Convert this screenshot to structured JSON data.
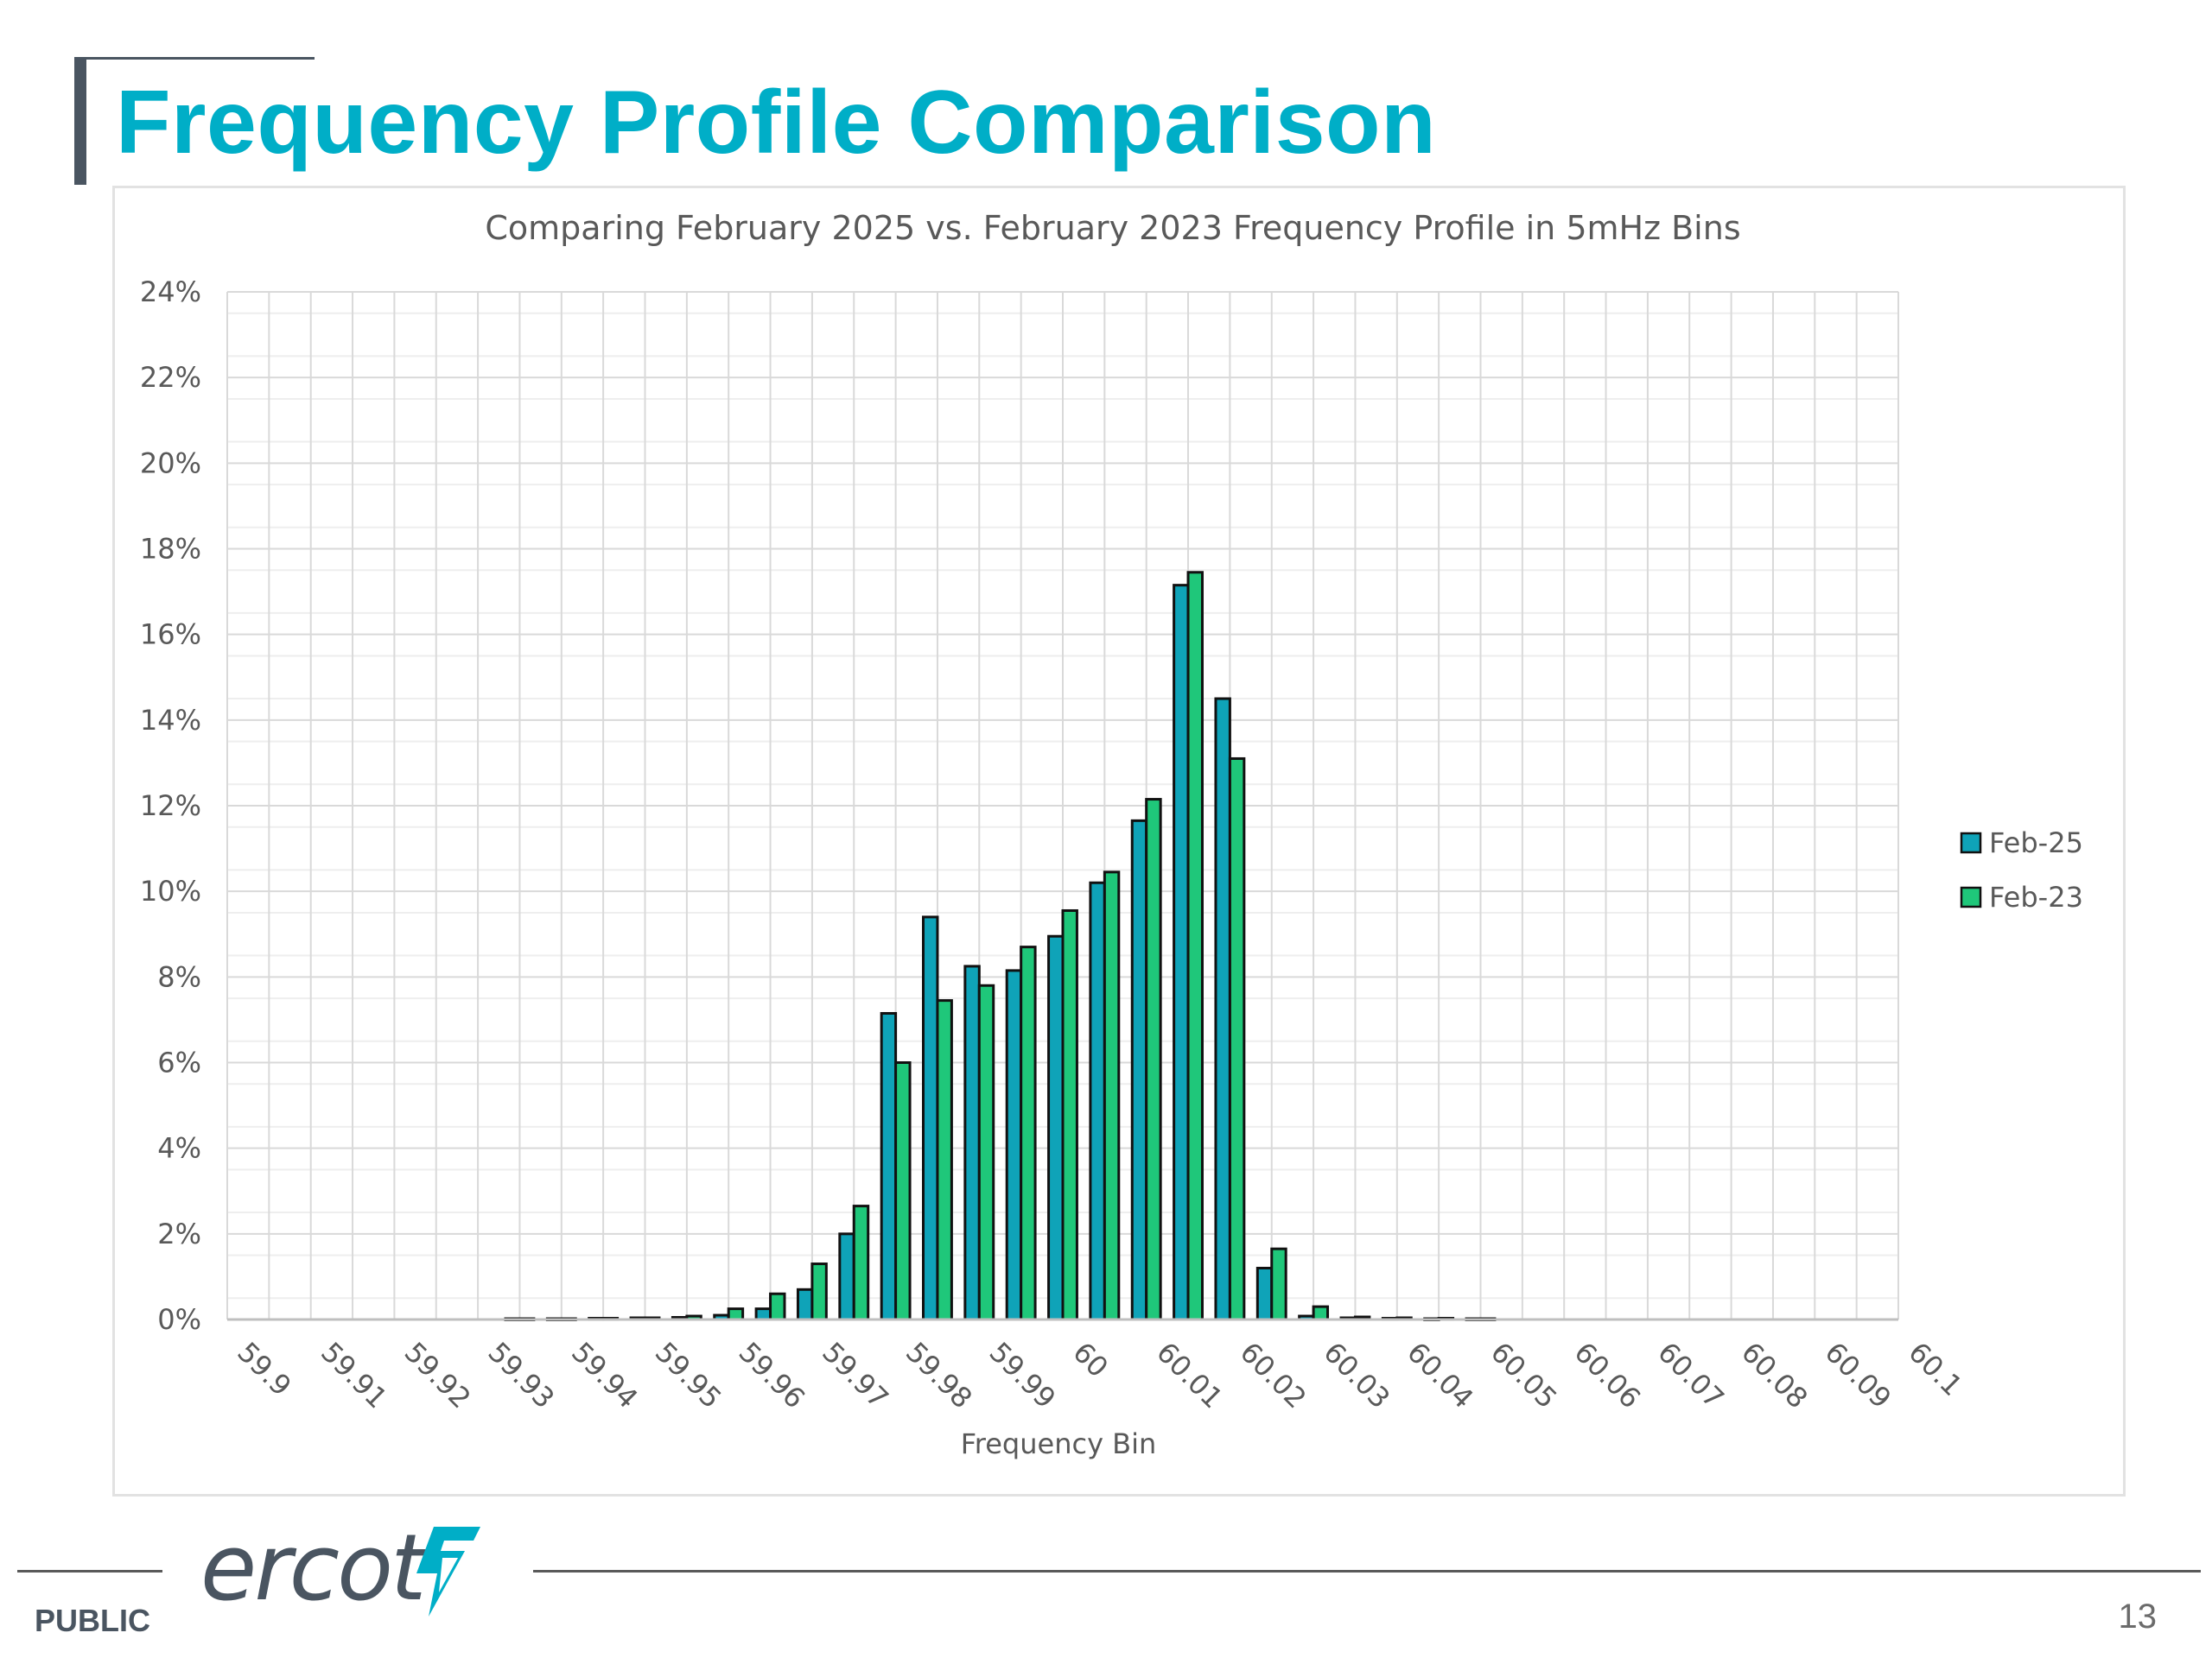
{
  "slide": {
    "title": "Frequency Profile Comparison",
    "footer_label": "PUBLIC",
    "page_number": "13",
    "logo_text": "ercot"
  },
  "colors": {
    "title": "#00AEC7",
    "feb25": "#0FA3B8",
    "feb23": "#1FC77A",
    "bar_outline": "#111111",
    "grid": "#D9D9D9",
    "axis_text": "#595959"
  },
  "icons": {
    "logo_mark": "ercot-lightning-icon"
  },
  "chart_data": {
    "type": "bar",
    "title": "Comparing February 2025 vs. February 2023 Frequency Profile in 5mHz Bins",
    "xlabel": "Frequency Bin",
    "ylabel": "",
    "ylim": [
      0,
      0.24
    ],
    "yticks": [
      "0%",
      "2%",
      "4%",
      "6%",
      "8%",
      "10%",
      "12%",
      "14%",
      "16%",
      "18%",
      "20%",
      "22%",
      "24%"
    ],
    "x_tick_labels": [
      "59.9",
      "59.91",
      "59.92",
      "59.93",
      "59.94",
      "59.95",
      "59.96",
      "59.97",
      "59.98",
      "59.99",
      "60",
      "60.01",
      "60.02",
      "60.03",
      "60.04",
      "60.05",
      "60.06",
      "60.07",
      "60.08",
      "60.09",
      "60.1"
    ],
    "grid": true,
    "legend_position": "right",
    "categories": [
      "59.900",
      "59.905",
      "59.910",
      "59.915",
      "59.920",
      "59.925",
      "59.930",
      "59.935",
      "59.940",
      "59.945",
      "59.950",
      "59.955",
      "59.960",
      "59.965",
      "59.970",
      "59.975",
      "59.980",
      "59.985",
      "59.990",
      "59.995",
      "60.000",
      "60.005",
      "60.010",
      "60.015",
      "60.020",
      "60.025",
      "60.030",
      "60.035",
      "60.040",
      "60.045",
      "60.050",
      "60.055",
      "60.060",
      "60.065",
      "60.070",
      "60.075",
      "60.080",
      "60.085",
      "60.090",
      "60.095",
      "60.100"
    ],
    "series": [
      {
        "name": "Feb-25",
        "values": [
          0,
          0,
          0,
          0,
          0,
          0,
          0,
          0.0002,
          0.0002,
          0.0003,
          0.0004,
          0.0005,
          0.001,
          0.0025,
          0.007,
          0.02,
          0.0715,
          0.094,
          0.0825,
          0.0815,
          0.0895,
          0.102,
          0.1165,
          0.1715,
          0.145,
          0.012,
          0.0008,
          0.0004,
          0.0003,
          0.0002,
          0.0002,
          0,
          0,
          0,
          0,
          0,
          0,
          0,
          0,
          0,
          0
        ]
      },
      {
        "name": "Feb-23",
        "values": [
          0,
          0,
          0,
          0,
          0,
          0,
          0,
          0.0002,
          0.0002,
          0.0003,
          0.0004,
          0.0008,
          0.0025,
          0.006,
          0.013,
          0.0265,
          0.06,
          0.0745,
          0.078,
          0.087,
          0.0955,
          0.1045,
          0.1215,
          0.1745,
          0.131,
          0.0165,
          0.003,
          0.0006,
          0.0004,
          0.0003,
          0.0002,
          0,
          0,
          0,
          0,
          0,
          0,
          0,
          0,
          0,
          0
        ]
      }
    ]
  }
}
